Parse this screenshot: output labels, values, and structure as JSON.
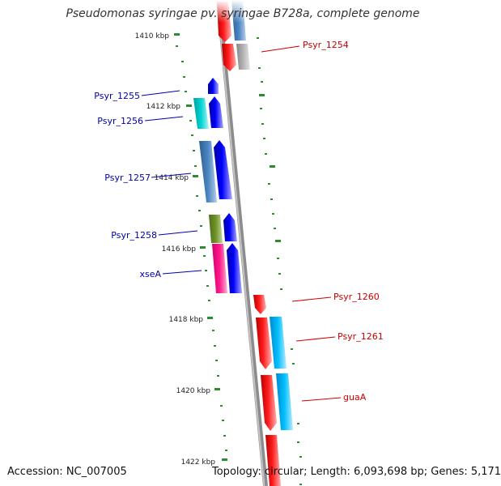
{
  "title": "Pseudomonas syringae pv. syringae B728a, complete genome",
  "footer": {
    "accession": "Accession: NC_007005",
    "topology": "Topology: circular; Length: 6,093,698 bp; Genes: 5,171"
  },
  "colors": {
    "backbone": "#8c8c8c",
    "tick": "#2e8b2e",
    "forward_label": "#cc0000",
    "reverse_label": "#0000aa",
    "forward_strand": "#ff0000",
    "reverse_strand": "#0000ff"
  },
  "ticks": [
    "1410 kbp",
    "1412 kbp",
    "1414 kbp",
    "1416 kbp",
    "1418 kbp",
    "1420 kbp",
    "1422 kbp"
  ],
  "genes": {
    "left": [
      "Psyr_1255",
      "Psyr_1256",
      "Psyr_1257",
      "Psyr_1258",
      "xseA"
    ],
    "right": [
      "Psyr_1254",
      "Psyr_1260",
      "Psyr_1261",
      "guaA"
    ]
  }
}
